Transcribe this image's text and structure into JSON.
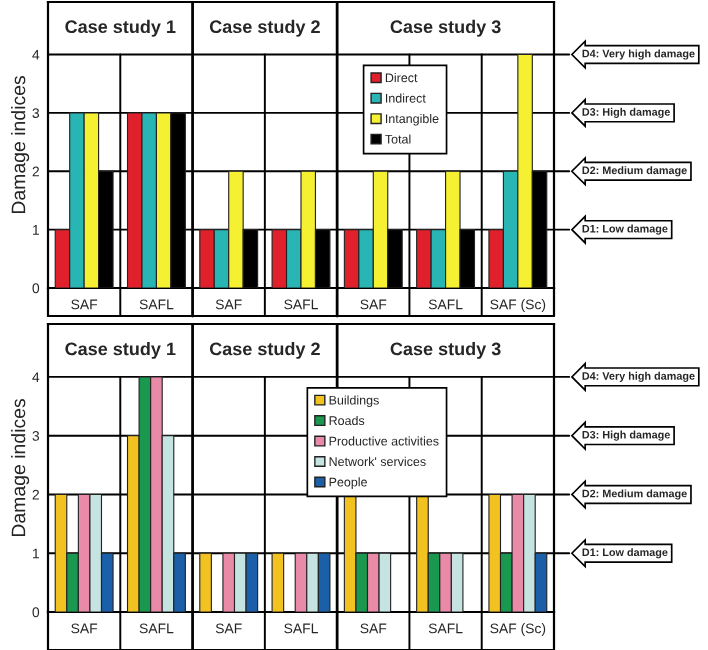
{
  "chart_data": [
    {
      "type": "bar",
      "ylabel": "Damage indices",
      "categories": [
        "SAF",
        "SAFL",
        "SAF",
        "SAFL",
        "SAF",
        "SAFL",
        "SAF (Sc)"
      ],
      "series": [
        {
          "name": "Direct",
          "color": "#e0202a",
          "values": [
            1,
            3,
            1,
            1,
            1,
            1,
            1
          ]
        },
        {
          "name": "Indirect",
          "color": "#2ab5b5",
          "values": [
            3,
            3,
            1,
            1,
            1,
            1,
            2
          ]
        },
        {
          "name": "Intangible",
          "color": "#f5f032",
          "values": [
            3,
            3,
            2,
            2,
            2,
            2,
            4
          ]
        },
        {
          "name": "Total",
          "color": "#000000",
          "values": [
            2,
            3,
            1,
            1,
            1,
            1,
            2
          ]
        }
      ],
      "ylim": [
        0,
        4.9
      ],
      "yticks": [
        0,
        1,
        2,
        3,
        4
      ],
      "legend": "top right",
      "annotations": [
        "Case study 1",
        "Case study 2",
        "Case study 3"
      ],
      "ref_lines": [
        {
          "axis": "y",
          "value": 1,
          "label": "D1: Low damage"
        },
        {
          "axis": "y",
          "value": 2,
          "label": "D2: Medium damage"
        },
        {
          "axis": "y",
          "value": 3,
          "label": "D3: High damage"
        },
        {
          "axis": "y",
          "value": 4,
          "label": "D4: Very high damage"
        }
      ]
    },
    {
      "type": "bar",
      "ylabel": "Damage indices",
      "categories": [
        "SAF",
        "SAFL",
        "SAF",
        "SAFL",
        "SAF",
        "SAFL",
        "SAF (Sc)"
      ],
      "series": [
        {
          "name": "Buildings",
          "color": "#f2c320",
          "values": [
            2,
            3,
            1,
            1,
            2,
            2,
            2
          ]
        },
        {
          "name": "Roads",
          "color": "#1a9850",
          "values": [
            1,
            4,
            0,
            0,
            1,
            1,
            1
          ]
        },
        {
          "name": "Productive activities",
          "color": "#e88aa8",
          "values": [
            2,
            4,
            1,
            1,
            1,
            1,
            2
          ]
        },
        {
          "name": "Network' services",
          "color": "#c5e3e0",
          "values": [
            2,
            3,
            1,
            1,
            1,
            1,
            2
          ]
        },
        {
          "name": "People",
          "color": "#1a5fa8",
          "values": [
            1,
            1,
            1,
            1,
            0,
            0,
            1
          ]
        }
      ],
      "ylim": [
        0,
        4.9
      ],
      "yticks": [
        0,
        1,
        2,
        3,
        4
      ],
      "legend": "top right",
      "annotations": [
        "Case study 1",
        "Case study 2",
        "Case study 3"
      ],
      "ref_lines": [
        {
          "axis": "y",
          "value": 1,
          "label": "D1: Low damage"
        },
        {
          "axis": "y",
          "value": 2,
          "label": "D2: Medium damage"
        },
        {
          "axis": "y",
          "value": 3,
          "label": "D3: High damage"
        },
        {
          "axis": "y",
          "value": 4,
          "label": "D4: Very high damage"
        }
      ]
    }
  ]
}
